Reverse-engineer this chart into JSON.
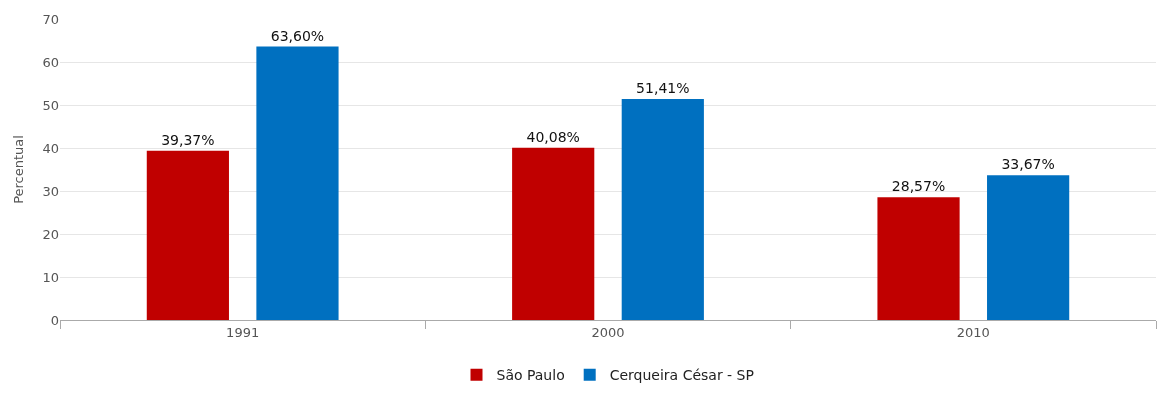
{
  "chart_data": {
    "type": "bar",
    "ylabel": "Percentual",
    "categories": [
      "1991",
      "2000",
      "2010"
    ],
    "series": [
      {
        "name": "São Paulo",
        "color": "#c00000",
        "values": [
          39.37,
          40.08,
          28.57
        ],
        "value_labels": [
          "39,37%",
          "40,08%",
          "28,57%"
        ]
      },
      {
        "name": "Cerqueira César - SP",
        "color": "#0070c0",
        "values": [
          63.6,
          51.41,
          33.67
        ],
        "value_labels": [
          "63,60%",
          "51,41%",
          "33,67%"
        ]
      }
    ],
    "ylim": [
      0,
      70
    ],
    "yticks": [
      0,
      10,
      20,
      30,
      40,
      50,
      60,
      70
    ],
    "grid": "y",
    "legend": "bottom"
  }
}
